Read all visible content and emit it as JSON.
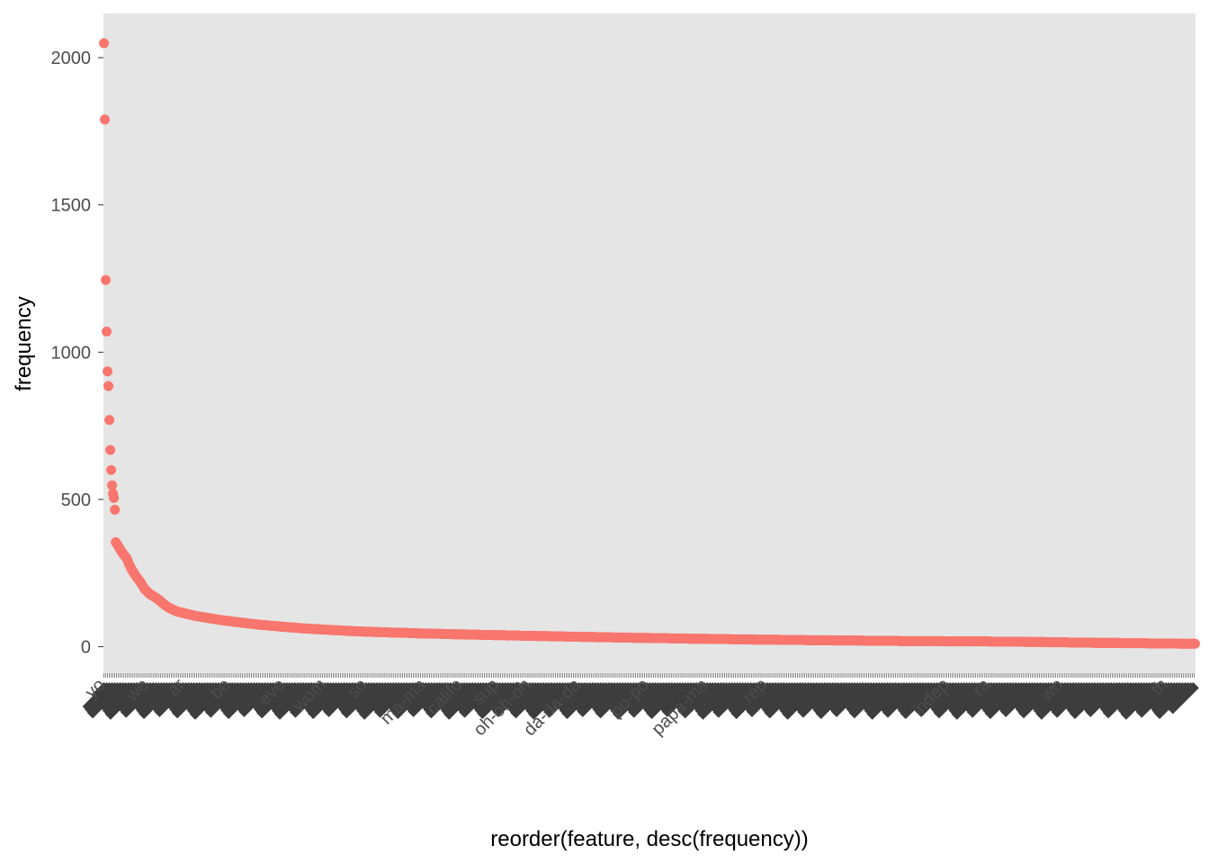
{
  "chart_data": {
    "type": "scatter",
    "xlabel": "reorder(feature, desc(frequency))",
    "ylabel": "frequency",
    "ylim": [
      -90,
      2150
    ],
    "yticks": [
      0,
      500,
      1000,
      1500,
      2000
    ],
    "grid": false,
    "legend": "none",
    "point_color": "#F8766D",
    "panel_background": "#E5E5E5",
    "x_count": 1200,
    "values_head": [
      2049,
      1790,
      1245,
      1070,
      935,
      885,
      770,
      668,
      600,
      548,
      520,
      505,
      465
    ],
    "decay": [
      [
        13,
        355
      ],
      [
        16,
        340
      ],
      [
        20,
        320
      ],
      [
        25,
        300
      ],
      [
        30,
        265
      ],
      [
        35,
        240
      ],
      [
        40,
        220
      ],
      [
        45,
        195
      ],
      [
        50,
        180
      ],
      [
        60,
        160
      ],
      [
        70,
        135
      ],
      [
        80,
        120
      ],
      [
        100,
        105
      ],
      [
        130,
        90
      ],
      [
        170,
        75
      ],
      [
        220,
        62
      ],
      [
        280,
        52
      ],
      [
        350,
        45
      ],
      [
        450,
        38
      ],
      [
        550,
        32
      ],
      [
        700,
        25
      ],
      [
        850,
        20
      ],
      [
        1000,
        17
      ],
      [
        1199,
        10
      ]
    ],
    "x_tick_labels_visible": [
      {
        "i": 2,
        "label": "yo"
      },
      {
        "i": 50,
        "label": "we"
      },
      {
        "i": 90,
        "label": "ar"
      },
      {
        "i": 140,
        "label": "be"
      },
      {
        "i": 200,
        "label": "eve"
      },
      {
        "i": 245,
        "label": "wom"
      },
      {
        "i": 290,
        "label": "so"
      },
      {
        "i": 355,
        "label": "ma-ma"
      },
      {
        "i": 395,
        "label": "califo"
      },
      {
        "i": 435,
        "label": "sup"
      },
      {
        "i": 470,
        "label": "oh-oh-oh"
      },
      {
        "i": 525,
        "label": "da-da-da"
      },
      {
        "i": 600,
        "label": "po-po"
      },
      {
        "i": 665,
        "label": "papa-ma"
      },
      {
        "i": 730,
        "label": "rep"
      },
      {
        "i": 930,
        "label": "indep"
      },
      {
        "i": 975,
        "label": "ra"
      },
      {
        "i": 1055,
        "label": "wo"
      },
      {
        "i": 1170,
        "label": "th"
      }
    ]
  }
}
